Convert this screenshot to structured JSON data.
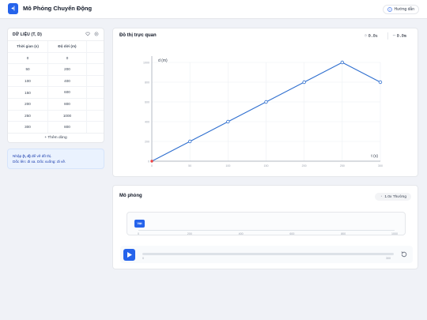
{
  "app": {
    "title": "Mô Phỏng Chuyển Động",
    "logo_glyph": "◂|",
    "guide_label": "Hướng dẫn"
  },
  "data_panel": {
    "title": "DỮ LIỆU (T, D)",
    "columns": [
      "Thời gian (s)",
      "Độ dời (m)"
    ],
    "rows": [
      [
        "0",
        "0"
      ],
      [
        "50",
        "200"
      ],
      [
        "100",
        "400"
      ],
      [
        "150",
        "600"
      ],
      [
        "200",
        "800"
      ],
      [
        "250",
        "1000"
      ],
      [
        "300",
        "800"
      ]
    ],
    "add_row_label": "+ Thêm dòng"
  },
  "note": {
    "line1_prefix": "Nhập ",
    "line1_bold": "(t, d)",
    "line1_suffix": " để vẽ đồ thị.",
    "line2": "Dốc lên: đi xa. Dốc xuống: đi về."
  },
  "graph_panel": {
    "title": "Đồ thị trực quan",
    "time_readout": "0.0s",
    "distance_readout": "0.0m"
  },
  "chart_data": {
    "type": "line",
    "x": [
      0,
      50,
      100,
      150,
      200,
      250,
      300
    ],
    "y": [
      0,
      200,
      400,
      600,
      800,
      1000,
      800
    ],
    "xlabel": "t (s)",
    "ylabel": "d (m)",
    "xlim": [
      0,
      300
    ],
    "ylim": [
      0,
      1000
    ],
    "xticks": [
      "0",
      "50",
      "100",
      "150",
      "200",
      "250",
      "300"
    ],
    "yticks": [
      "0",
      "200",
      "400",
      "600",
      "800",
      "1000"
    ],
    "grid": true,
    "color": "#2f6fcf"
  },
  "simulation": {
    "title": "Mô phỏng",
    "speed_label": "1.0x Thường",
    "object_label": "Vật",
    "track_ticks": [
      "0",
      "200",
      "400",
      "600",
      "800",
      "1000"
    ],
    "slider_min": "0",
    "slider_max": "300",
    "progress": 0
  },
  "colors": {
    "accent": "#2563eb",
    "note_bg": "#eaf2fe"
  }
}
